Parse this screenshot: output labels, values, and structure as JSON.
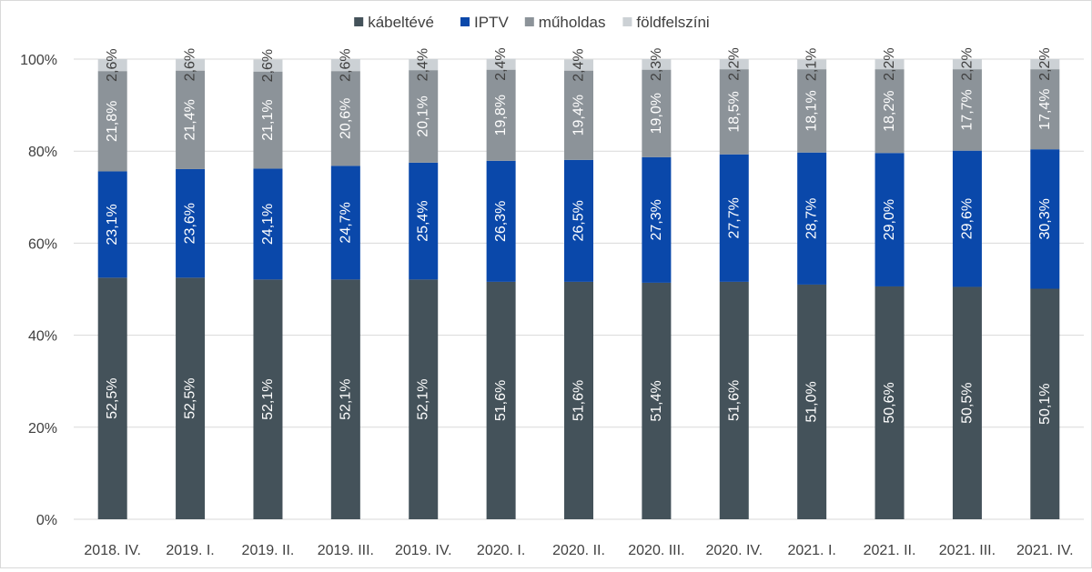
{
  "chart_data": {
    "type": "bar",
    "stacked": true,
    "percent": true,
    "categories": [
      "2018. IV.",
      "2019. I.",
      "2019. II.",
      "2019. III.",
      "2019. IV.",
      "2020. I.",
      "2020. II.",
      "2020. III.",
      "2020. IV.",
      "2021. I.",
      "2021. II.",
      "2021. III.",
      "2021. IV."
    ],
    "series": [
      {
        "name": "kábeltévé",
        "color": "#44525a",
        "label_color": "#ffffff",
        "values": [
          52.5,
          52.5,
          52.1,
          52.1,
          52.1,
          51.6,
          51.6,
          51.4,
          51.6,
          51.0,
          50.6,
          50.5,
          50.1
        ],
        "labels": [
          "52,5%",
          "52,5%",
          "52,1%",
          "52,1%",
          "52,1%",
          "51,6%",
          "51,6%",
          "51,4%",
          "51,6%",
          "51,0%",
          "50,6%",
          "50,5%",
          "50,1%"
        ]
      },
      {
        "name": "IPTV",
        "color": "#0a48aa",
        "label_color": "#ffffff",
        "values": [
          23.1,
          23.6,
          24.1,
          24.7,
          25.4,
          26.3,
          26.5,
          27.3,
          27.7,
          28.7,
          29.0,
          29.6,
          30.3
        ],
        "labels": [
          "23,1%",
          "23,6%",
          "24,1%",
          "24,7%",
          "25,4%",
          "26,3%",
          "26,5%",
          "27,3%",
          "27,7%",
          "28,7%",
          "29,0%",
          "29,6%",
          "30,3%"
        ]
      },
      {
        "name": "műholdas",
        "color": "#8c9399",
        "label_color": "#ffffff",
        "values": [
          21.8,
          21.4,
          21.1,
          20.6,
          20.1,
          19.8,
          19.4,
          19.0,
          18.5,
          18.1,
          18.2,
          17.7,
          17.4
        ],
        "labels": [
          "21,8%",
          "21,4%",
          "21,1%",
          "20,6%",
          "20,1%",
          "19,8%",
          "19,4%",
          "19,0%",
          "18,5%",
          "18,1%",
          "18,2%",
          "17,7%",
          "17,4%"
        ]
      },
      {
        "name": "földfelszíni",
        "color": "#ccd1d5",
        "label_color": "#404040",
        "values": [
          2.6,
          2.6,
          2.6,
          2.6,
          2.4,
          2.4,
          2.4,
          2.3,
          2.2,
          2.1,
          2.2,
          2.2,
          2.2
        ],
        "labels": [
          "2,6%",
          "2,6%",
          "2,6%",
          "2,6%",
          "2,4%",
          "2,4%",
          "2,4%",
          "2,3%",
          "2,2%",
          "2,1%",
          "2,2%",
          "2,2%",
          "2,2%"
        ]
      }
    ],
    "y_ticks": [
      "0%",
      "20%",
      "40%",
      "60%",
      "80%",
      "100%"
    ],
    "ylim": [
      0,
      100
    ],
    "grid": true,
    "legend_position": "top-center"
  }
}
